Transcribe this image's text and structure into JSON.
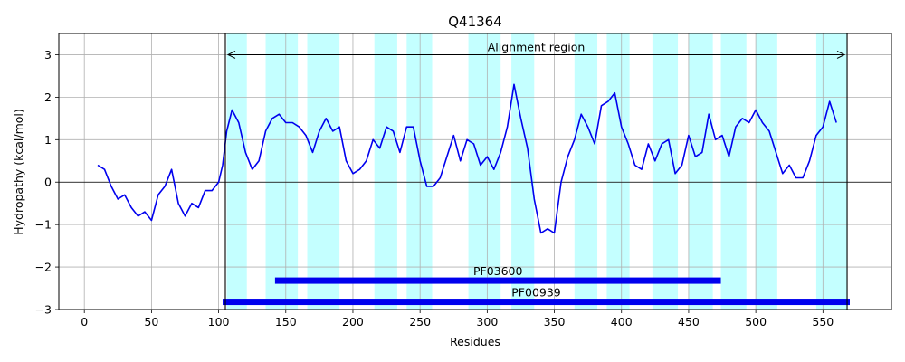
{
  "chart_data": {
    "type": "line",
    "title": "Q41364",
    "xlabel": "Residues",
    "ylabel": "Hydropathy (kcal/mol)",
    "xlim": [
      -19,
      601
    ],
    "ylim": [
      -3,
      3.5
    ],
    "xticks": [
      0,
      50,
      100,
      150,
      200,
      250,
      300,
      350,
      400,
      450,
      500,
      550
    ],
    "yticks": [
      -3,
      -2,
      -1,
      0,
      1,
      2,
      3
    ],
    "grid": true,
    "colors": {
      "line": "#0000ee",
      "band": "#c4ffff",
      "domain": "#0000ee"
    },
    "series": [
      {
        "x": [
          10,
          15,
          20,
          25,
          30,
          35,
          40,
          45,
          50,
          55,
          60,
          65,
          70,
          75,
          80,
          85,
          90,
          95,
          100,
          103,
          106,
          110,
          115,
          120,
          125,
          130,
          135,
          140,
          145,
          150,
          155,
          160,
          165,
          170,
          175,
          180,
          185,
          190,
          195,
          200,
          205,
          210,
          215,
          220,
          225,
          230,
          235,
          240,
          245,
          250,
          255,
          260,
          265,
          270,
          275,
          280,
          285,
          290,
          295,
          300,
          305,
          310,
          315,
          320,
          325,
          330,
          335,
          340,
          345,
          350,
          355,
          360,
          365,
          370,
          375,
          380,
          385,
          390,
          395,
          400,
          405,
          410,
          415,
          420,
          425,
          430,
          435,
          440,
          445,
          450,
          455,
          460,
          465,
          470,
          475,
          480,
          485,
          490,
          495,
          500,
          505,
          510,
          515,
          520,
          525,
          530,
          535,
          540,
          545,
          550,
          555,
          560
        ],
        "y": [
          0.4,
          0.3,
          -0.1,
          -0.4,
          -0.3,
          -0.6,
          -0.8,
          -0.7,
          -0.9,
          -0.3,
          -0.1,
          0.3,
          -0.5,
          -0.8,
          -0.5,
          -0.6,
          -0.2,
          -0.2,
          0.0,
          0.4,
          1.2,
          1.7,
          1.4,
          0.7,
          0.3,
          0.5,
          1.2,
          1.5,
          1.6,
          1.4,
          1.4,
          1.3,
          1.1,
          0.7,
          1.2,
          1.5,
          1.2,
          1.3,
          0.5,
          0.2,
          0.3,
          0.5,
          1.0,
          0.8,
          1.3,
          1.2,
          0.7,
          1.3,
          1.3,
          0.5,
          -0.1,
          -0.1,
          0.1,
          0.6,
          1.1,
          0.5,
          1.0,
          0.9,
          0.4,
          0.6,
          0.3,
          0.7,
          1.3,
          2.3,
          1.5,
          0.8,
          -0.4,
          -1.2,
          -1.1,
          -1.2,
          0.0,
          0.6,
          1.0,
          1.6,
          1.3,
          0.9,
          1.8,
          1.9,
          2.1,
          1.3,
          0.9,
          0.4,
          0.3,
          0.9,
          0.5,
          0.9,
          1.0,
          0.2,
          0.4,
          1.1,
          0.6,
          0.7,
          1.6,
          1.0,
          1.1,
          0.6,
          1.3,
          1.5,
          1.4,
          1.7,
          1.4,
          1.2,
          0.7,
          0.2,
          0.4,
          0.1,
          0.1,
          0.5,
          1.1,
          1.3,
          1.9,
          1.4
        ]
      }
    ],
    "hydrophobic_bands": [
      [
        106,
        121
      ],
      [
        135,
        159
      ],
      [
        166,
        190
      ],
      [
        216,
        233
      ],
      [
        240,
        259
      ],
      [
        286,
        310
      ],
      [
        318,
        335
      ],
      [
        365,
        382
      ],
      [
        389,
        406
      ],
      [
        423,
        442
      ],
      [
        450,
        468
      ],
      [
        474,
        493
      ],
      [
        500,
        516
      ],
      [
        545,
        568
      ]
    ],
    "alignment_region": {
      "label": "Alignment region",
      "start": 105,
      "end": 568,
      "y": 3.0
    },
    "domains": [
      {
        "name": "PF03600",
        "start": 142,
        "end": 474,
        "y": -2.32
      },
      {
        "name": "PF00939",
        "start": 103,
        "end": 570,
        "y": -2.82
      }
    ]
  }
}
